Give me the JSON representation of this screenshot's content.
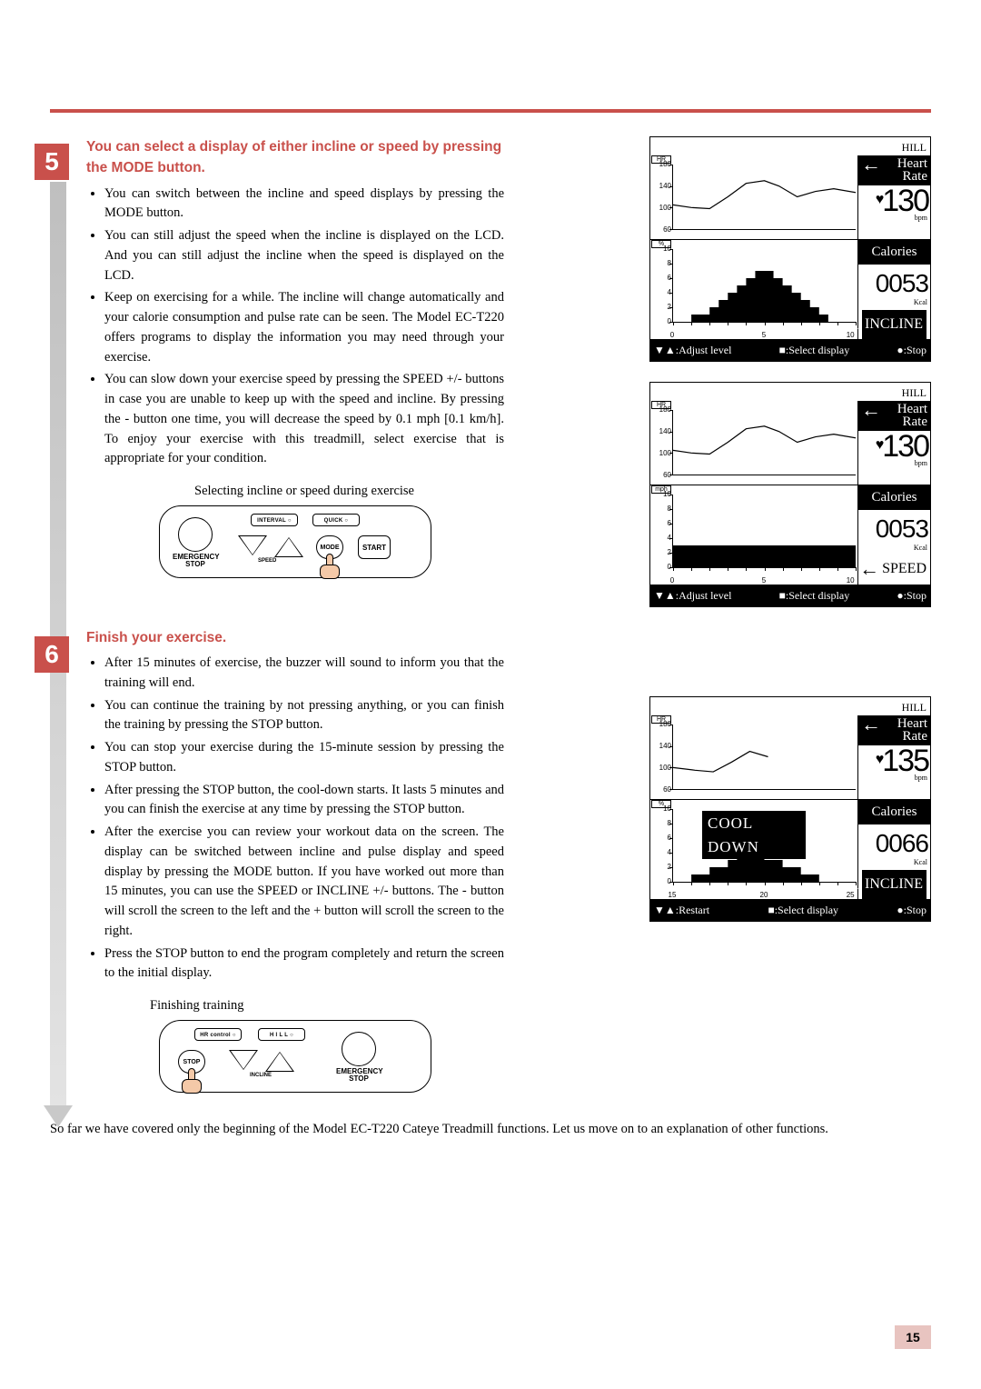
{
  "page_number": "15",
  "accent_color": "#c9504b",
  "section5": {
    "title": "You can select a display of either incline or speed by pressing the MODE button.",
    "bullets": [
      "You can switch between the incline and speed displays by pressing the MODE button.",
      "You can still adjust the speed when the incline is displayed on the LCD. And you can still adjust the incline when the speed is displayed on the LCD.",
      "Keep on exercising for a while. The incline will change automatically and your calorie consumption and pulse rate can be seen. The Model EC-T220 offers programs to display the information you may need through your exercise.",
      "You can slow down your exercise speed by pressing the SPEED +/- buttons in case you are unable to keep up with the speed and incline. By pressing the - button one time, you will decrease the speed by 0.1 mph [0.1 km/h]. To enjoy your exercise with this treadmill, select exercise that is appropriate for your condition."
    ],
    "panel_caption": "Selecting incline or speed during exercise",
    "panel_buttons": {
      "interval": "INTERVAL ○",
      "quick": "QUICK ○",
      "emergency": "EMERGENCY\nSTOP",
      "speed": "SPEED",
      "mode": "MODE",
      "start": "START"
    }
  },
  "section6": {
    "title": "Finish your exercise.",
    "bullets": [
      "After 15 minutes of exercise, the buzzer will sound to inform you that the training will end.",
      "You can continue the training by not pressing anything, or you can finish the training by pressing the STOP button.",
      "You can stop your exercise during the 15-minute session by pressing the STOP button.",
      "After pressing the STOP button, the cool-down starts. It lasts 5 minutes and you can finish the exercise at any time by pressing the STOP button.",
      "After the exercise you can review your workout data on the screen. The display can be switched between incline and pulse display and speed display by pressing the MODE button. If you have worked out more than 15 minutes, you can use the SPEED or INCLINE  +/- buttons. The - button will scroll the screen to the left and the + button will scroll the screen to the right.",
      "Press the STOP button to end the program completely and return the screen to the initial display."
    ],
    "panel_caption": "Finishing training",
    "panel_buttons": {
      "hrcontrol": "HR control ○",
      "hill": "H I L L ○",
      "stop": "STOP",
      "incline": "INCLINE",
      "emergency": "EMERGENCY\nSTOP"
    }
  },
  "closing": "So far we have covered only the beginning of the Model EC-T220 Cateye Treadmill functions. Let us move on to an explanation of other functions.",
  "lcd_common": {
    "program_label": "HILL",
    "hr_label": "Heart\nRate",
    "cal_label": "Calories",
    "incline_label": "INCLINE",
    "speed_label": "SPEED",
    "bpm": "bpm",
    "kcal": "Kcal",
    "bottom_actions": {
      "adjust": "▼▲:Adjust level",
      "select": "■:Select display",
      "stop": "●:Stop",
      "restart": "▼▲:Restart"
    }
  },
  "lcd1": {
    "hr_value": "130",
    "cal_value": "0053",
    "mode": "INCLINE",
    "mode_inverted": true,
    "hr_chart": {
      "unit": "HR",
      "yticks": [
        "180",
        "140",
        "100",
        "60"
      ],
      "ylim": [
        60,
        180
      ],
      "points": [
        [
          0,
          105
        ],
        [
          10,
          100
        ],
        [
          20,
          98
        ],
        [
          30,
          120
        ],
        [
          40,
          145
        ],
        [
          50,
          150
        ],
        [
          58,
          140
        ],
        [
          68,
          120
        ],
        [
          78,
          130
        ],
        [
          88,
          135
        ],
        [
          100,
          128
        ]
      ]
    },
    "bar_chart": {
      "unit": "%",
      "yticks": [
        "10",
        "8",
        "6",
        "4",
        "2",
        "0"
      ],
      "ylim": [
        0,
        10
      ],
      "xticks": [
        "0",
        "5",
        "10 min"
      ],
      "xtick_pos": [
        0,
        50,
        100
      ],
      "values": [
        0,
        0,
        1,
        1,
        2,
        3,
        4,
        5,
        6,
        7,
        7,
        6,
        5,
        4,
        3,
        2,
        1,
        0,
        0,
        0
      ]
    }
  },
  "lcd2": {
    "hr_value": "130",
    "cal_value": "0053",
    "mode": "SPEED",
    "mode_inverted": false,
    "hr_chart": {
      "unit": "HR",
      "yticks": [
        "180",
        "140",
        "100",
        "60"
      ],
      "ylim": [
        60,
        180
      ],
      "points": [
        [
          0,
          105
        ],
        [
          10,
          100
        ],
        [
          20,
          98
        ],
        [
          30,
          120
        ],
        [
          40,
          145
        ],
        [
          50,
          150
        ],
        [
          58,
          140
        ],
        [
          68,
          120
        ],
        [
          78,
          130
        ],
        [
          88,
          135
        ],
        [
          100,
          128
        ]
      ]
    },
    "bar_chart": {
      "unit": "mph",
      "yticks": [
        "10",
        "8",
        "6",
        "4",
        "2",
        "0"
      ],
      "ylim": [
        0,
        10
      ],
      "xticks": [
        "0",
        "5",
        "10 min"
      ],
      "xtick_pos": [
        0,
        50,
        100
      ],
      "values": [
        3,
        3,
        3,
        3,
        3,
        3,
        3,
        3,
        3,
        3,
        3,
        3,
        3,
        3,
        3,
        3,
        3,
        3,
        3,
        3
      ]
    }
  },
  "lcd3": {
    "hr_value": "135",
    "cal_value": "0066",
    "mode": "INCLINE",
    "mode_inverted": true,
    "overlay": "COOL DOWN",
    "hr_chart": {
      "unit": "HR",
      "yticks": [
        "180",
        "140",
        "100",
        "60"
      ],
      "ylim": [
        60,
        180
      ],
      "points": [
        [
          0,
          100
        ],
        [
          12,
          95
        ],
        [
          22,
          92
        ],
        [
          32,
          110
        ],
        [
          42,
          130
        ],
        [
          52,
          120
        ],
        [
          100,
          120
        ]
      ],
      "truncate_at": 55
    },
    "bar_chart": {
      "unit": "%",
      "yticks": [
        "10",
        "8",
        "6",
        "4",
        "2",
        "0"
      ],
      "ylim": [
        0,
        10
      ],
      "xticks": [
        "15",
        "20",
        "25 min"
      ],
      "xtick_pos": [
        0,
        50,
        100
      ],
      "values": [
        0,
        0,
        1,
        1,
        2,
        2,
        3,
        4,
        4,
        4,
        3,
        3,
        2,
        2,
        1,
        1,
        0,
        0,
        0,
        0
      ]
    },
    "bottom": "restart"
  }
}
